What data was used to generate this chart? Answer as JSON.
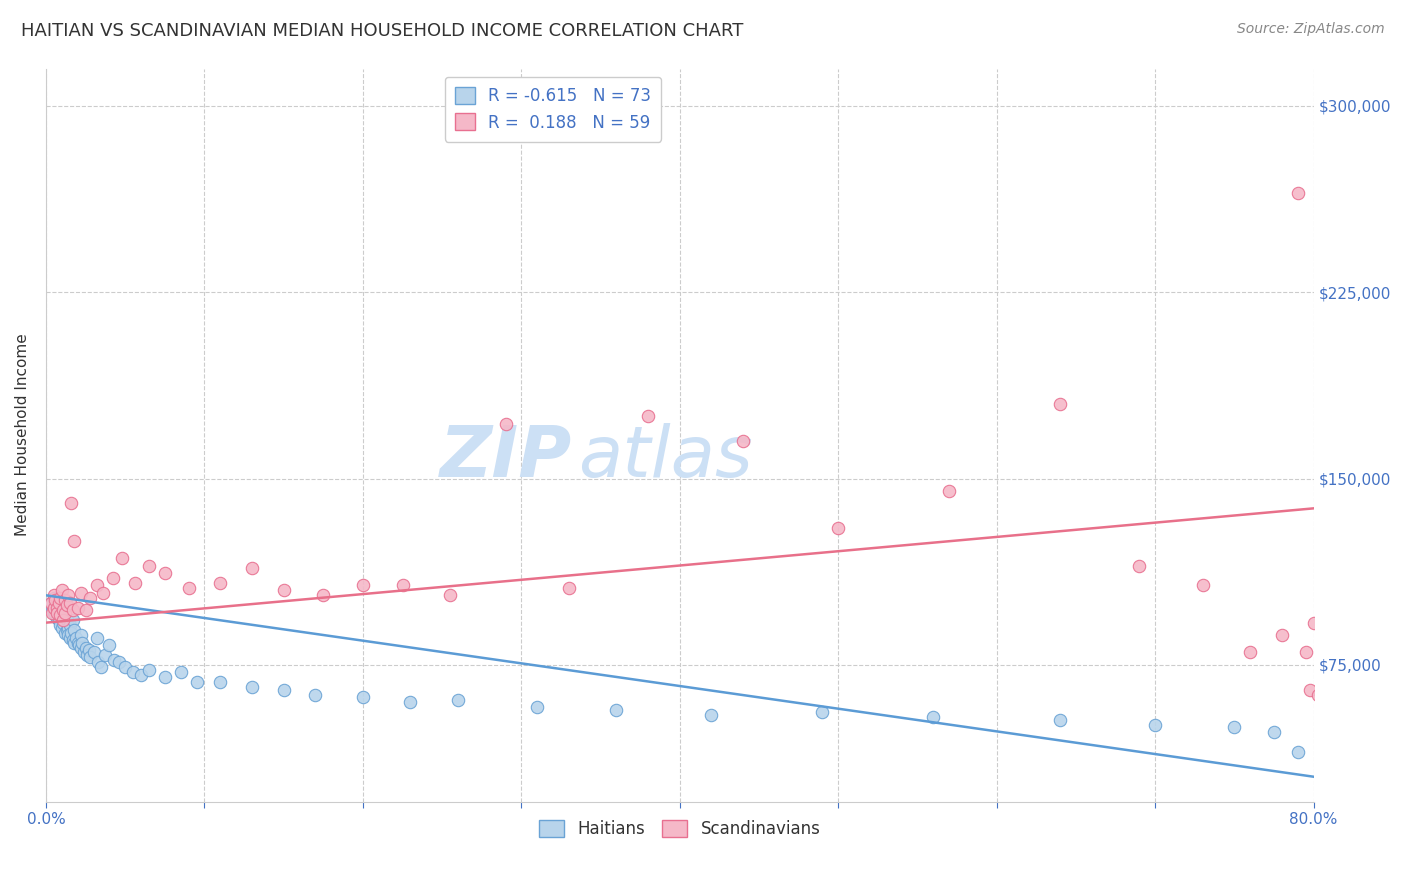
{
  "title": "HAITIAN VS SCANDINAVIAN MEDIAN HOUSEHOLD INCOME CORRELATION CHART",
  "source": "Source: ZipAtlas.com",
  "ylabel": "Median Household Income",
  "ytick_labels": [
    "$75,000",
    "$150,000",
    "$225,000",
    "$300,000"
  ],
  "ytick_values": [
    75000,
    150000,
    225000,
    300000
  ],
  "ymin": 20000,
  "ymax": 315000,
  "xmin": 0.0,
  "xmax": 0.8,
  "legend_r1": "R = -0.615",
  "legend_n1": "N = 73",
  "legend_r2": "R =  0.188",
  "legend_n2": "N = 59",
  "haitian_fill": "#b8d4eb",
  "haitian_edge": "#6aa3d5",
  "scandinavian_fill": "#f5b8c8",
  "scandinavian_edge": "#e87090",
  "haitian_line_color": "#5b9bd5",
  "scandinavian_line_color": "#e8708a",
  "background_color": "#ffffff",
  "watermark_zip": "ZIP",
  "watermark_atlas": "atlas",
  "watermark_color": "#cce0f5",
  "haitians_label": "Haitians",
  "scandinavians_label": "Scandinavians",
  "haitian_x": [
    0.003,
    0.004,
    0.005,
    0.005,
    0.006,
    0.006,
    0.007,
    0.007,
    0.008,
    0.008,
    0.009,
    0.009,
    0.01,
    0.01,
    0.01,
    0.011,
    0.011,
    0.012,
    0.012,
    0.013,
    0.013,
    0.014,
    0.014,
    0.015,
    0.015,
    0.016,
    0.017,
    0.017,
    0.018,
    0.018,
    0.019,
    0.02,
    0.021,
    0.022,
    0.022,
    0.023,
    0.024,
    0.025,
    0.026,
    0.027,
    0.028,
    0.03,
    0.032,
    0.033,
    0.035,
    0.037,
    0.04,
    0.043,
    0.046,
    0.05,
    0.055,
    0.06,
    0.065,
    0.075,
    0.085,
    0.095,
    0.11,
    0.13,
    0.15,
    0.17,
    0.2,
    0.23,
    0.26,
    0.31,
    0.36,
    0.42,
    0.49,
    0.56,
    0.64,
    0.7,
    0.75,
    0.775,
    0.79
  ],
  "haitian_y": [
    100000,
    97000,
    102000,
    96000,
    98000,
    95000,
    100000,
    94000,
    97000,
    93000,
    96000,
    91000,
    99000,
    95000,
    90000,
    96000,
    92000,
    95000,
    88000,
    93000,
    89000,
    90000,
    87000,
    91000,
    86000,
    88000,
    93000,
    85000,
    89000,
    84000,
    86000,
    84000,
    83000,
    87000,
    82000,
    84000,
    80000,
    82000,
    79000,
    81000,
    78000,
    80000,
    86000,
    76000,
    74000,
    79000,
    83000,
    77000,
    76000,
    74000,
    72000,
    71000,
    73000,
    70000,
    72000,
    68000,
    68000,
    66000,
    65000,
    63000,
    62000,
    60000,
    61000,
    58000,
    57000,
    55000,
    56000,
    54000,
    53000,
    51000,
    50000,
    48000,
    40000
  ],
  "scandinavian_x": [
    0.003,
    0.004,
    0.005,
    0.005,
    0.006,
    0.007,
    0.007,
    0.008,
    0.009,
    0.009,
    0.01,
    0.011,
    0.011,
    0.012,
    0.012,
    0.013,
    0.014,
    0.015,
    0.016,
    0.017,
    0.018,
    0.02,
    0.022,
    0.025,
    0.028,
    0.032,
    0.036,
    0.042,
    0.048,
    0.056,
    0.065,
    0.075,
    0.09,
    0.11,
    0.13,
    0.15,
    0.175,
    0.2,
    0.225,
    0.255,
    0.29,
    0.33,
    0.38,
    0.44,
    0.5,
    0.57,
    0.64,
    0.69,
    0.73,
    0.76,
    0.78,
    0.79,
    0.795,
    0.798,
    0.8,
    0.803,
    0.805,
    0.807,
    0.81
  ],
  "scandinavian_y": [
    100000,
    96000,
    103000,
    98000,
    101000,
    98000,
    96000,
    100000,
    102000,
    95000,
    105000,
    97000,
    93000,
    101000,
    96000,
    99000,
    103000,
    100000,
    140000,
    97000,
    125000,
    98000,
    104000,
    97000,
    102000,
    107000,
    104000,
    110000,
    118000,
    108000,
    115000,
    112000,
    106000,
    108000,
    114000,
    105000,
    103000,
    107000,
    107000,
    103000,
    172000,
    106000,
    175000,
    165000,
    130000,
    145000,
    180000,
    115000,
    107000,
    80000,
    87000,
    265000,
    80000,
    65000,
    92000,
    63000,
    65000,
    63000,
    64000
  ],
  "haitian_trend_x": [
    0.0,
    0.8
  ],
  "haitian_trend_y": [
    103000,
    30000
  ],
  "scandinavian_trend_x": [
    0.0,
    0.8
  ],
  "scandinavian_trend_y": [
    92000,
    138000
  ],
  "grid_color": "#cccccc",
  "tick_color": "#4472c4",
  "title_fontsize": 13,
  "source_fontsize": 10,
  "axis_fontsize": 11,
  "legend_fontsize": 12,
  "watermark_fontsize_zip": 52,
  "watermark_fontsize_atlas": 52
}
